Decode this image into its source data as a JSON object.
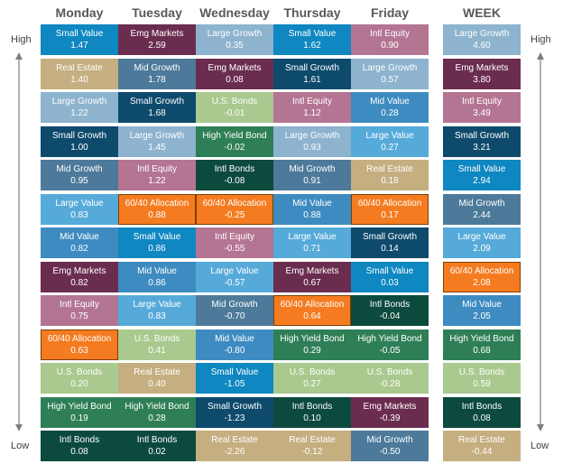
{
  "labels": {
    "high": "High",
    "low": "Low"
  },
  "colors": {
    "Small Value": "#0f87c0",
    "Real Estate": "#c5ae80",
    "Large Growth": "#8db3cf",
    "Small Growth": "#0e4a6c",
    "Mid Growth": "#4d7a9a",
    "Large Value": "#56aad9",
    "Mid Value": "#3e8bc1",
    "Emg Markets": "#6b2d4f",
    "Intl Equity": "#b47593",
    "60/40 Allocation": "#f47b20",
    "U.S. Bonds": "#a9c98e",
    "High Yield Bond": "#2f7f56",
    "Intl Bonds": "#0c4a3e"
  },
  "chart_data": {
    "type": "table",
    "columns": [
      {
        "header": "Monday",
        "cells": [
          {
            "name": "Small Value",
            "value": "1.47"
          },
          {
            "name": "Real Estate",
            "value": "1.40"
          },
          {
            "name": "Large Growth",
            "value": "1.22"
          },
          {
            "name": "Small Growth",
            "value": "1.00"
          },
          {
            "name": "Mid Growth",
            "value": "0.95"
          },
          {
            "name": "Large Value",
            "value": "0.83"
          },
          {
            "name": "Mid Value",
            "value": "0.82"
          },
          {
            "name": "Emg Markets",
            "value": "0.82"
          },
          {
            "name": "Intl Equity",
            "value": "0.75"
          },
          {
            "name": "60/40 Allocation",
            "value": "0.63"
          },
          {
            "name": "U.S. Bonds",
            "value": "0.20"
          },
          {
            "name": "High Yield Bond",
            "value": "0.19"
          },
          {
            "name": "Intl Bonds",
            "value": "0.08"
          }
        ]
      },
      {
        "header": "Tuesday",
        "cells": [
          {
            "name": "Emg Markets",
            "value": "2.59"
          },
          {
            "name": "Mid Growth",
            "value": "1.78"
          },
          {
            "name": "Small Growth",
            "value": "1.68"
          },
          {
            "name": "Large Growth",
            "value": "1.45"
          },
          {
            "name": "Intl Equity",
            "value": "1.22"
          },
          {
            "name": "60/40 Allocation",
            "value": "0.88"
          },
          {
            "name": "Small Value",
            "value": "0.86"
          },
          {
            "name": "Mid Value",
            "value": "0.86"
          },
          {
            "name": "Large Value",
            "value": "0.83"
          },
          {
            "name": "U.S. Bonds",
            "value": "0.41"
          },
          {
            "name": "Real Estate",
            "value": "0.40"
          },
          {
            "name": "High Yield Bond",
            "value": "0.28"
          },
          {
            "name": "Intl Bonds",
            "value": "0.02"
          }
        ]
      },
      {
        "header": "Wednesday",
        "cells": [
          {
            "name": "Large Growth",
            "value": "0.35"
          },
          {
            "name": "Emg Markets",
            "value": "0.08"
          },
          {
            "name": "U.S. Bonds",
            "value": "-0.01"
          },
          {
            "name": "High Yield Bond",
            "value": "-0.02"
          },
          {
            "name": "Intl Bonds",
            "value": "-0.08"
          },
          {
            "name": "60/40 Allocation",
            "value": "-0.25"
          },
          {
            "name": "Intl Equity",
            "value": "-0.55"
          },
          {
            "name": "Large Value",
            "value": "-0.57"
          },
          {
            "name": "Mid Growth",
            "value": "-0.70"
          },
          {
            "name": "Mid Value",
            "value": "-0.80"
          },
          {
            "name": "Small Value",
            "value": "-1.05"
          },
          {
            "name": "Small Growth",
            "value": "-1.23"
          },
          {
            "name": "Real Estate",
            "value": "-2.26"
          }
        ]
      },
      {
        "header": "Thursday",
        "cells": [
          {
            "name": "Small Value",
            "value": "1.62"
          },
          {
            "name": "Small Growth",
            "value": "1.61"
          },
          {
            "name": "Intl Equity",
            "value": "1.12"
          },
          {
            "name": "Large Growth",
            "value": "0.93"
          },
          {
            "name": "Mid Growth",
            "value": "0.91"
          },
          {
            "name": "Mid Value",
            "value": "0.88"
          },
          {
            "name": "Large Value",
            "value": "0.71"
          },
          {
            "name": "Emg Markets",
            "value": "0.67"
          },
          {
            "name": "60/40 Allocation",
            "value": "0.64"
          },
          {
            "name": "High Yield Bond",
            "value": "0.29"
          },
          {
            "name": "U.S. Bonds",
            "value": "0.27"
          },
          {
            "name": "Intl Bonds",
            "value": "0.10"
          },
          {
            "name": "Real Estate",
            "value": "-0.12"
          }
        ]
      },
      {
        "header": "Friday",
        "cells": [
          {
            "name": "Intl Equity",
            "value": "0.90"
          },
          {
            "name": "Large Growth",
            "value": "0.57"
          },
          {
            "name": "Mid Value",
            "value": "0.28"
          },
          {
            "name": "Large Value",
            "value": "0.27"
          },
          {
            "name": "Real Estate",
            "value": "0.18"
          },
          {
            "name": "60/40 Allocation",
            "value": "0.17"
          },
          {
            "name": "Small Growth",
            "value": "0.14"
          },
          {
            "name": "Small Value",
            "value": "0.03"
          },
          {
            "name": "Intl Bonds",
            "value": "-0.04"
          },
          {
            "name": "High Yield Bond",
            "value": "-0.05"
          },
          {
            "name": "U.S. Bonds",
            "value": "-0.28"
          },
          {
            "name": "Emg Markets",
            "value": "-0.39"
          },
          {
            "name": "Mid Growth",
            "value": "-0.50"
          }
        ]
      },
      {
        "header": "WEEK",
        "cells": [
          {
            "name": "Large Growth",
            "value": "4.60"
          },
          {
            "name": "Emg Markets",
            "value": "3.80"
          },
          {
            "name": "Intl Equity",
            "value": "3.49"
          },
          {
            "name": "Small Growth",
            "value": "3.21"
          },
          {
            "name": "Small Value",
            "value": "2.94"
          },
          {
            "name": "Mid Growth",
            "value": "2.44"
          },
          {
            "name": "Large Value",
            "value": "2.09"
          },
          {
            "name": "60/40 Allocation",
            "value": "2.08"
          },
          {
            "name": "Mid Value",
            "value": "2.05"
          },
          {
            "name": "High Yield Bond",
            "value": "0.68"
          },
          {
            "name": "U.S. Bonds",
            "value": "0.59"
          },
          {
            "name": "Intl Bonds",
            "value": "0.08"
          },
          {
            "name": "Real Estate",
            "value": "-0.44"
          }
        ]
      }
    ]
  }
}
